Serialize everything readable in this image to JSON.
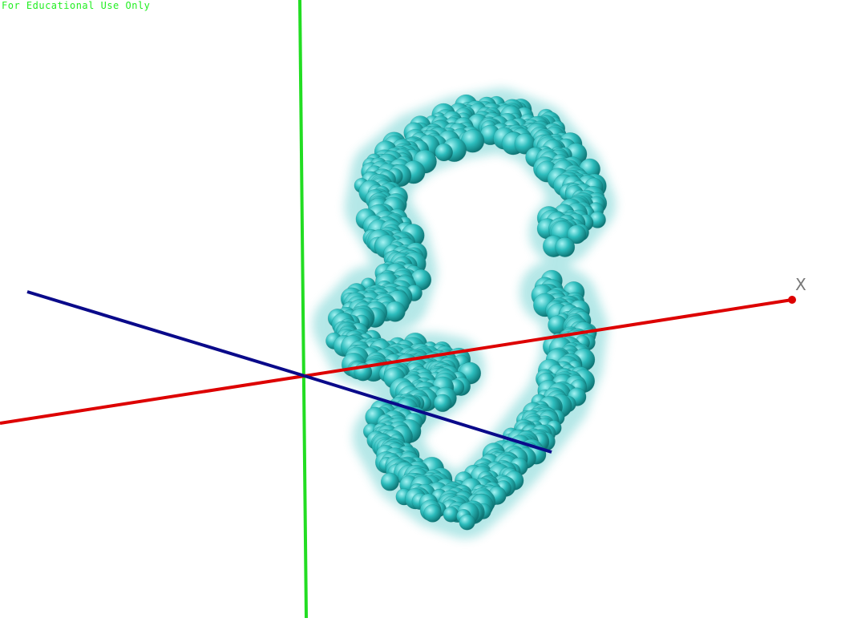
{
  "watermark": "For Educational Use Only",
  "axes": {
    "x": {
      "label": "X",
      "color": "#dd0000"
    },
    "y": {
      "label": "",
      "color": "#22dd22"
    },
    "z": {
      "label": "",
      "color": "#0a0a8a"
    }
  },
  "molecule": {
    "representation": "spheres",
    "color": "#2cbcbc",
    "highlight": "#a6f3f3",
    "shadow": "#0a6a6a"
  }
}
